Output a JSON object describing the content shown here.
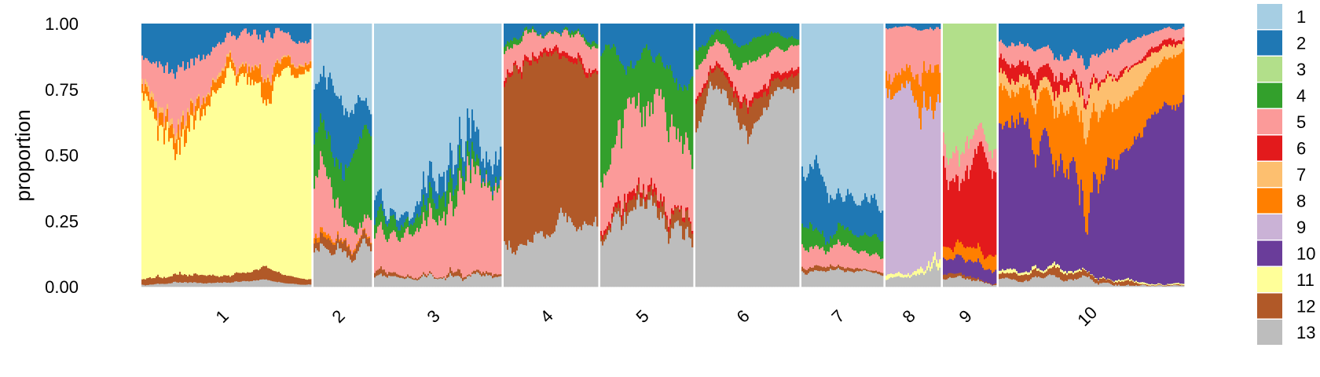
{
  "chart_data": {
    "type": "bar",
    "subtype": "stacked-structure-plot",
    "title": "",
    "xlabel": "",
    "ylabel": "proportion",
    "ylim": [
      0,
      1
    ],
    "y_ticks": [
      "0.00",
      "0.25",
      "0.50",
      "0.75",
      "1.00"
    ],
    "legend_position": "right",
    "series": [
      {
        "name": "1",
        "color": "#a6cee3"
      },
      {
        "name": "2",
        "color": "#1f78b4"
      },
      {
        "name": "3",
        "color": "#b2df8a"
      },
      {
        "name": "4",
        "color": "#33a02c"
      },
      {
        "name": "5",
        "color": "#fb9a99"
      },
      {
        "name": "6",
        "color": "#e31a1c"
      },
      {
        "name": "7",
        "color": "#fdbf6f"
      },
      {
        "name": "8",
        "color": "#ff7f00"
      },
      {
        "name": "9",
        "color": "#cab2d6"
      },
      {
        "name": "10",
        "color": "#6a3d9a"
      },
      {
        "name": "11",
        "color": "#ffff99"
      },
      {
        "name": "12",
        "color": "#b15928"
      },
      {
        "name": "13",
        "color": "#bdbdbd"
      }
    ],
    "groups": [
      {
        "label": "1",
        "width": 217,
        "profile": {
          "11": 0.7,
          "5": 0.1,
          "2": 0.12,
          "8": 0.03,
          "7": 0.02,
          "12": 0.02,
          "13": 0.01
        }
      },
      {
        "label": "2",
        "width": 75,
        "profile": {
          "1": 0.25,
          "2": 0.2,
          "4": 0.2,
          "5": 0.18,
          "13": 0.12,
          "12": 0.03,
          "8": 0.02
        }
      },
      {
        "label": "3",
        "width": 163,
        "profile": {
          "1": 0.68,
          "2": 0.08,
          "5": 0.14,
          "4": 0.05,
          "13": 0.03,
          "12": 0.02
        }
      },
      {
        "label": "4",
        "width": 121,
        "profile": {
          "12": 0.62,
          "5": 0.1,
          "2": 0.08,
          "13": 0.15,
          "4": 0.03,
          "6": 0.02
        }
      },
      {
        "label": "5",
        "width": 118,
        "profile": {
          "4": 0.5,
          "5": 0.16,
          "2": 0.12,
          "13": 0.18,
          "6": 0.02,
          "12": 0.02
        }
      },
      {
        "label": "6",
        "width": 133,
        "profile": {
          "13": 0.62,
          "12": 0.1,
          "5": 0.1,
          "4": 0.08,
          "2": 0.08,
          "6": 0.02
        }
      },
      {
        "label": "7",
        "width": 104,
        "profile": {
          "1": 0.55,
          "2": 0.22,
          "4": 0.08,
          "5": 0.08,
          "13": 0.05,
          "12": 0.02
        }
      },
      {
        "label": "8",
        "width": 70,
        "profile": {
          "9": 0.7,
          "5": 0.17,
          "8": 0.06,
          "2": 0.02,
          "11": 0.02,
          "13": 0.03
        }
      },
      {
        "label": "9",
        "width": 68,
        "profile": {
          "6": 0.38,
          "3": 0.38,
          "5": 0.08,
          "8": 0.05,
          "10": 0.06,
          "13": 0.03,
          "12": 0.02
        }
      },
      {
        "label": "10",
        "width": 237,
        "profile": {
          "10": 0.58,
          "8": 0.14,
          "7": 0.05,
          "6": 0.06,
          "2": 0.06,
          "5": 0.05,
          "13": 0.03,
          "12": 0.02,
          "11": 0.01
        }
      }
    ]
  }
}
